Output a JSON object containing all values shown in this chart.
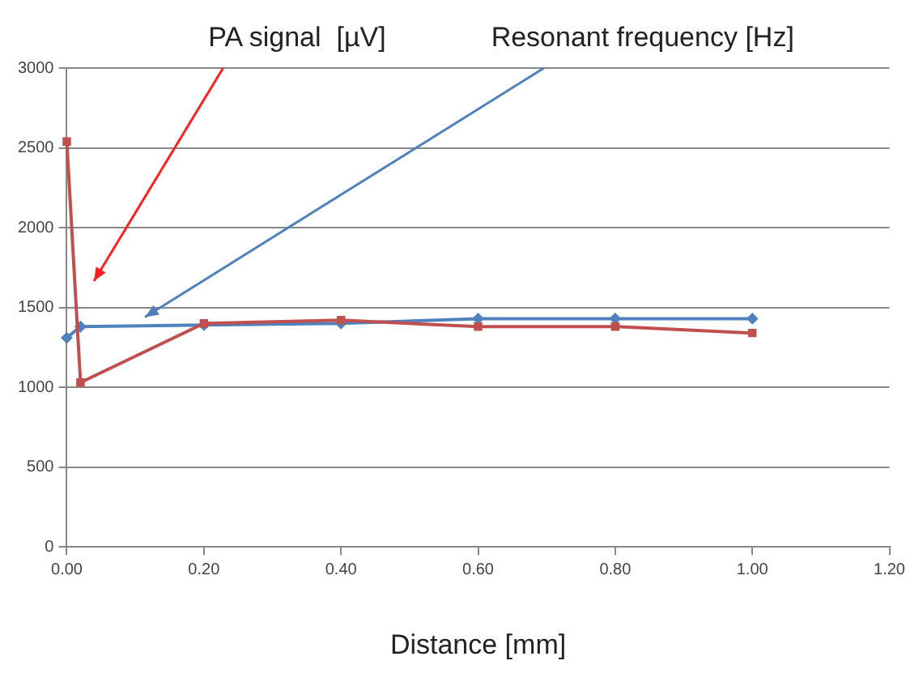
{
  "chart_data": {
    "type": "line",
    "xlabel": "Distance [mm]",
    "xlim": [
      0,
      1.2
    ],
    "xticks": [
      {
        "value": 0,
        "label": "0.00"
      },
      {
        "value": 0.2,
        "label": "0.20"
      },
      {
        "value": 0.4,
        "label": "0.40"
      },
      {
        "value": 0.6,
        "label": "0.60"
      },
      {
        "value": 0.8,
        "label": "0.80"
      },
      {
        "value": 1,
        "label": "1.00"
      },
      {
        "value": 1.2,
        "label": "1.20"
      }
    ],
    "ylim": [
      0,
      3000
    ],
    "yticks": [
      0,
      500,
      1000,
      1500,
      2000,
      2500,
      3000
    ],
    "grid": "y",
    "legend": false,
    "series": [
      {
        "name": "Resonant frequency [Hz]",
        "color": "#4f81bd",
        "marker": "diamond",
        "x": [
          0,
          0.02,
          0.2,
          0.4,
          0.6,
          0.8,
          1.0
        ],
        "values": [
          1310,
          1380,
          1390,
          1400,
          1430,
          1430,
          1430
        ]
      },
      {
        "name": "PA signal  [µV]",
        "color": "#c0504d",
        "marker": "square",
        "x": [
          0,
          0.02,
          0.2,
          0.4,
          0.6,
          0.8,
          1.0
        ],
        "values": [
          2540,
          1030,
          1400,
          1420,
          1380,
          1380,
          1340
        ]
      }
    ]
  }
}
